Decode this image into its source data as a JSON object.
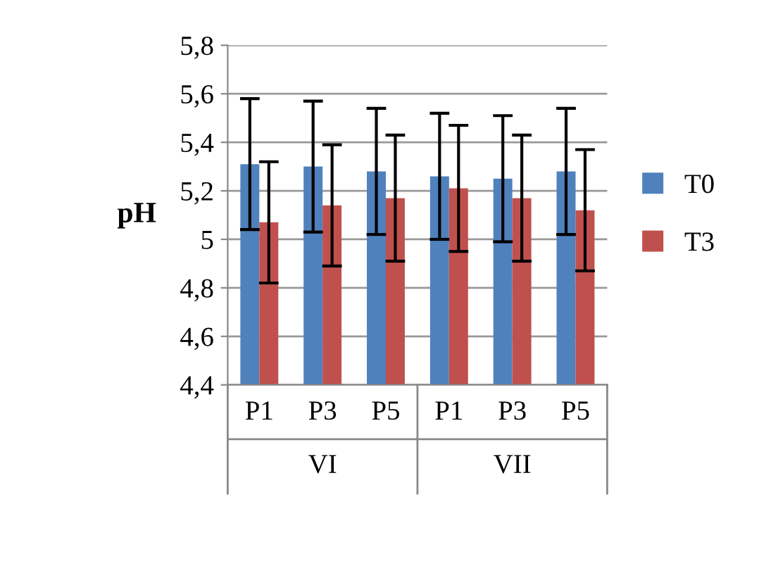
{
  "chart_data": {
    "type": "bar",
    "ylabel": "pH",
    "categories": [
      "P1",
      "P3",
      "P5",
      "P1",
      "P3",
      "P5"
    ],
    "series": [
      {
        "name": "T0",
        "color": "#4f81bd",
        "values": [
          5.31,
          5.3,
          5.28,
          5.26,
          5.25,
          5.28
        ],
        "errors": [
          0.27,
          0.27,
          0.26,
          0.26,
          0.26,
          0.26
        ]
      },
      {
        "name": "T3",
        "color": "#c0504d",
        "values": [
          5.07,
          5.14,
          5.17,
          5.21,
          5.17,
          5.12
        ],
        "errors": [
          0.25,
          0.25,
          0.26,
          0.26,
          0.26,
          0.25
        ]
      }
    ],
    "annotations": [
      "VI",
      "VII"
    ],
    "ylim": [
      4.4,
      5.8
    ],
    "yticks": [
      {
        "value": 4.4,
        "label": "4,4"
      },
      {
        "value": 4.6,
        "label": "4,6"
      },
      {
        "value": 4.8,
        "label": "4,8"
      },
      {
        "value": 5.0,
        "label": "5"
      },
      {
        "value": 5.2,
        "label": "5,2"
      },
      {
        "value": 5.4,
        "label": "5,4"
      },
      {
        "value": 5.6,
        "label": "5,6"
      },
      {
        "value": 5.8,
        "label": "5,8"
      }
    ],
    "grid": "y",
    "legend": "right"
  }
}
